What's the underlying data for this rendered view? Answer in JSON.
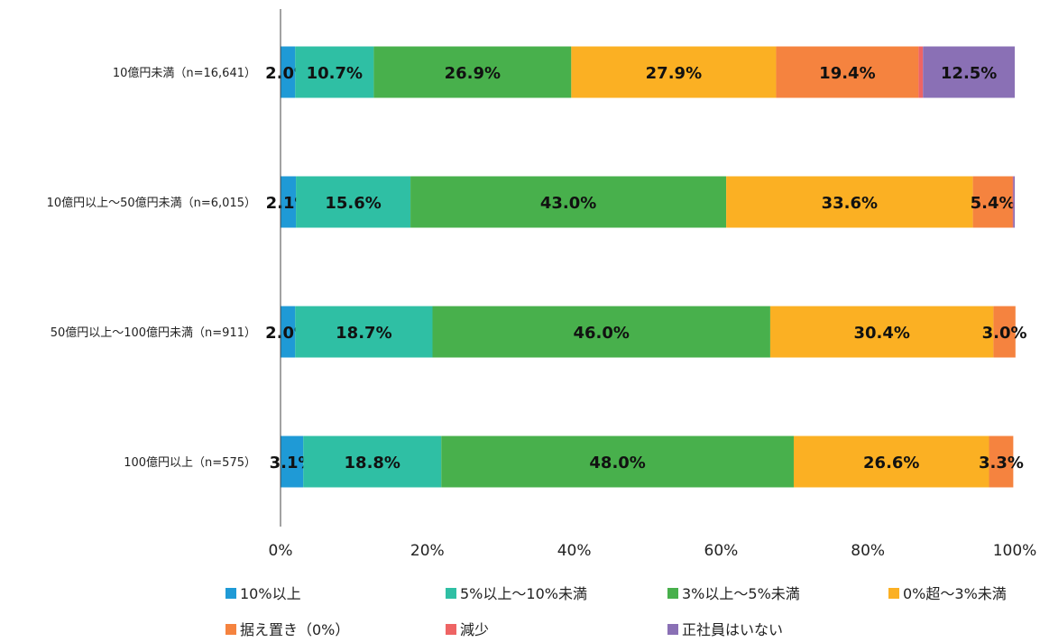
{
  "chart_data": {
    "type": "bar",
    "orientation": "horizontal",
    "stacked": true,
    "categories": [
      "10億円未満（n=16,641）",
      "10億円以上～50億円未満（n=6,015）",
      "50億円以上～100億円未満（n=911）",
      "100億円以上（n=575）"
    ],
    "series": [
      {
        "name": "10%以上",
        "color": "#1f9ad6",
        "values": [
          2.0,
          2.1,
          2.0,
          3.1
        ],
        "labels": [
          "2.0%",
          "2.1%",
          "2.0%",
          "3.1%"
        ]
      },
      {
        "name": "5%以上～10%未満",
        "color": "#2fbfa4",
        "values": [
          10.7,
          15.6,
          18.7,
          18.8
        ],
        "labels": [
          "10.7%",
          "15.6%",
          "18.7%",
          "18.8%"
        ]
      },
      {
        "name": "3%以上～5%未満",
        "color": "#48b04c",
        "values": [
          26.9,
          43.0,
          46.0,
          48.0
        ],
        "labels": [
          "26.9%",
          "43.0%",
          "46.0%",
          "48.0%"
        ]
      },
      {
        "name": "0%超～3%未満",
        "color": "#fbb023",
        "values": [
          27.9,
          33.6,
          30.4,
          26.6
        ],
        "labels": [
          "27.9%",
          "33.6%",
          "30.4%",
          "26.6%"
        ]
      },
      {
        "name": "据え置き（0%）",
        "color": "#f5833f",
        "values": [
          19.4,
          5.4,
          3.0,
          3.3
        ],
        "labels": [
          "19.4%",
          "5.4%",
          "3.0%",
          "3.3%"
        ]
      },
      {
        "name": "減少",
        "color": "#ee6464",
        "values": [
          0.6,
          0.1,
          0,
          0
        ],
        "labels": [
          "",
          "",
          "",
          ""
        ]
      },
      {
        "name": "正社員はいない",
        "color": "#8a70b5",
        "values": [
          12.5,
          0.2,
          0,
          0
        ],
        "labels": [
          "12.5%",
          "",
          "",
          ""
        ]
      }
    ],
    "xlim": [
      0,
      100
    ],
    "xticks": [
      "0%",
      "20%",
      "40%",
      "60%",
      "80%",
      "100%"
    ],
    "grid": false,
    "legend_placement": "bottom"
  }
}
